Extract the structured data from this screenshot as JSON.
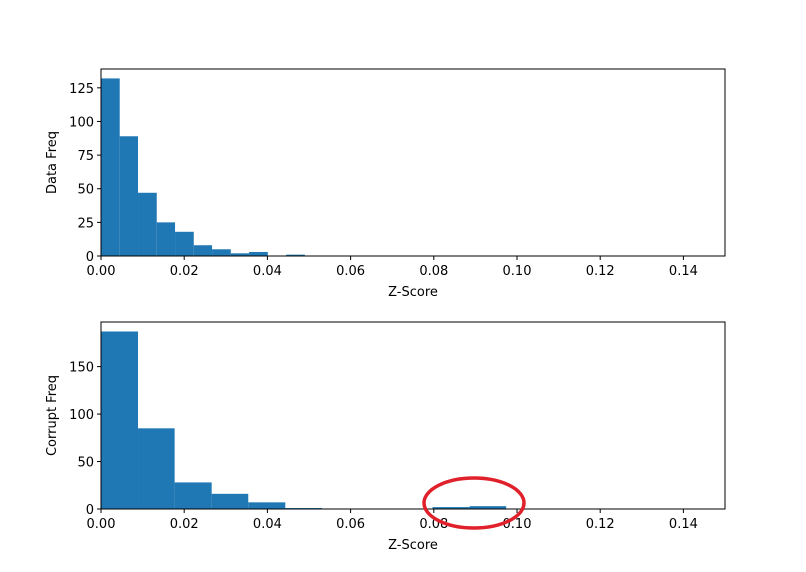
{
  "chart_data": [
    {
      "type": "histogram",
      "color": "#1f77b4",
      "x_label": "Z-Score",
      "y_label": "Data Freq",
      "bins": [
        0,
        0.0045,
        0.0089,
        0.0134,
        0.0178,
        0.0223,
        0.0267,
        0.0312,
        0.0356,
        0.0401,
        0.0445,
        0.049
      ],
      "values": [
        132,
        89,
        47,
        25,
        18,
        8,
        5,
        2,
        3,
        0,
        1
      ],
      "xlim": [
        0,
        0.15
      ],
      "ylim": [
        0,
        139
      ],
      "xticks": [
        {
          "value": 0,
          "label": "0.00"
        },
        {
          "value": 0.02,
          "label": "0.02"
        },
        {
          "value": 0.04,
          "label": "0.04"
        },
        {
          "value": 0.06,
          "label": "0.06"
        },
        {
          "value": 0.08,
          "label": "0.08"
        },
        {
          "value": 0.1,
          "label": "0.10"
        },
        {
          "value": 0.12,
          "label": "0.12"
        },
        {
          "value": 0.14,
          "label": "0.14"
        }
      ],
      "yticks": [
        0,
        25,
        50,
        75,
        100,
        125
      ]
    },
    {
      "type": "histogram",
      "color": "#1f77b4",
      "x_label": "Z-Score",
      "y_label": "Corrupt Freq",
      "bins": [
        0,
        0.0089,
        0.0177,
        0.0266,
        0.0354,
        0.0443,
        0.0531,
        0.062,
        0.0708,
        0.0797,
        0.0886,
        0.0974
      ],
      "values": [
        187,
        85,
        28,
        16,
        7,
        1,
        0,
        0,
        0,
        2,
        3
      ],
      "xlim": [
        0,
        0.15
      ],
      "ylim": [
        0,
        197
      ],
      "xticks": [
        {
          "value": 0,
          "label": "0.00"
        },
        {
          "value": 0.02,
          "label": "0.02"
        },
        {
          "value": 0.04,
          "label": "0.04"
        },
        {
          "value": 0.06,
          "label": "0.06"
        },
        {
          "value": 0.08,
          "label": "0.08"
        },
        {
          "value": 0.1,
          "label": "0.10"
        },
        {
          "value": 0.12,
          "label": "0.12"
        },
        {
          "value": 0.14,
          "label": "0.14"
        }
      ],
      "yticks": [
        0,
        50,
        100,
        150
      ]
    }
  ]
}
